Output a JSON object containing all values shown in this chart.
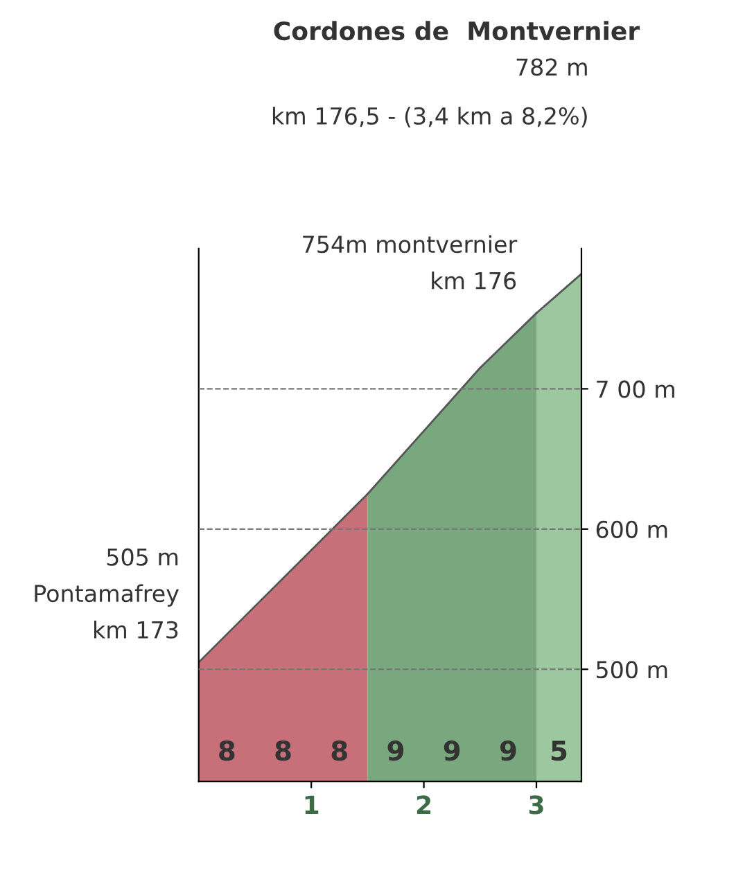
{
  "chart_data": {
    "type": "area",
    "title": "Cordones de  Montvernier",
    "subtitle": "782 m",
    "series": [
      {
        "color": "#c8707a",
        "x": [
          0,
          0.5,
          1,
          1.5
        ],
        "values": [
          505,
          545,
          585,
          625
        ]
      },
      {
        "color": "#7aa87e",
        "x": [
          1.5,
          2,
          2.5,
          3
        ],
        "values": [
          625,
          670,
          715,
          754
        ]
      },
      {
        "color": "#9cc79f",
        "x": [
          3,
          3.4
        ],
        "values": [
          754,
          782
        ]
      }
    ],
    "ylim": [
      420,
      800
    ],
    "yticks": [
      {
        "value": 500,
        "label": "500 m"
      },
      {
        "value": 600,
        "label": "600 m"
      },
      {
        "value": 700,
        "label": "7 00 m"
      }
    ],
    "xlim": [
      0,
      3.4
    ],
    "xticks": [
      1,
      2,
      3
    ],
    "grid": "y",
    "annotations": [
      "km 176,5 - (3,4 km a 8,2%)",
      {
        "text": "754m montvernier\nkm 176",
        "x": 3,
        "y": 754
      },
      {
        "text": "505 m\nPontamafrey\nkm 173",
        "x": 0,
        "y": 505
      },
      "8",
      "8",
      "8",
      "9",
      "9",
      "9",
      "5"
    ]
  }
}
